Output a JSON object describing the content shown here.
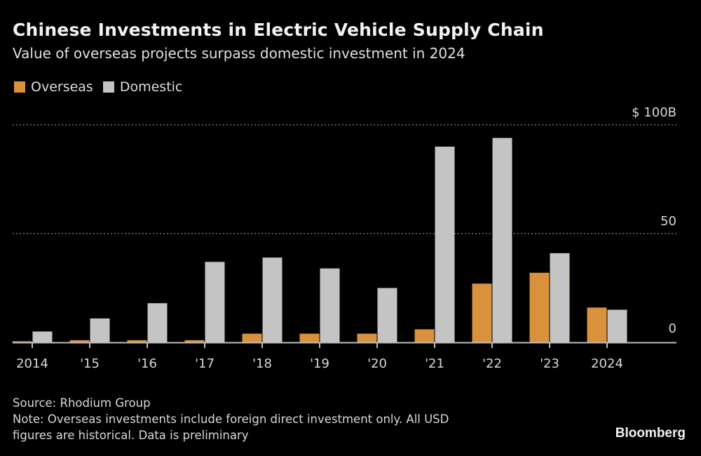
{
  "chart_data": {
    "type": "bar",
    "title": "Chinese Investments in Electric Vehicle Supply Chain",
    "subtitle": "Value of overseas projects surpass domestic investment in 2024",
    "categories": [
      "2014",
      "'15",
      "'16",
      "'17",
      "'18",
      "'19",
      "'20",
      "'21",
      "'22",
      "'23",
      "2024"
    ],
    "series": [
      {
        "name": "Overseas",
        "color": "#d9913b",
        "values": [
          0.5,
          1,
          1,
          1,
          4,
          4,
          4,
          6,
          27,
          32,
          16
        ]
      },
      {
        "name": "Domestic",
        "color": "#c4c4c4",
        "values": [
          5,
          11,
          18,
          37,
          39,
          34,
          25,
          90,
          94,
          41,
          15
        ]
      }
    ],
    "y_ticks": [
      {
        "value": 0,
        "label": "0"
      },
      {
        "value": 50,
        "label": "50"
      },
      {
        "value": 100,
        "label": "$ 100B"
      }
    ],
    "ylim": [
      0,
      100
    ],
    "xlabel": "",
    "ylabel": "",
    "grid": "dotted horizontal",
    "legend_position": "top-left"
  },
  "footer": {
    "source": "Source: Rhodium Group",
    "note_line1": "Note: Overseas investments include foreign direct investment only. All USD",
    "note_line2": "figures are historical. Data is preliminary",
    "brand": "Bloomberg"
  }
}
